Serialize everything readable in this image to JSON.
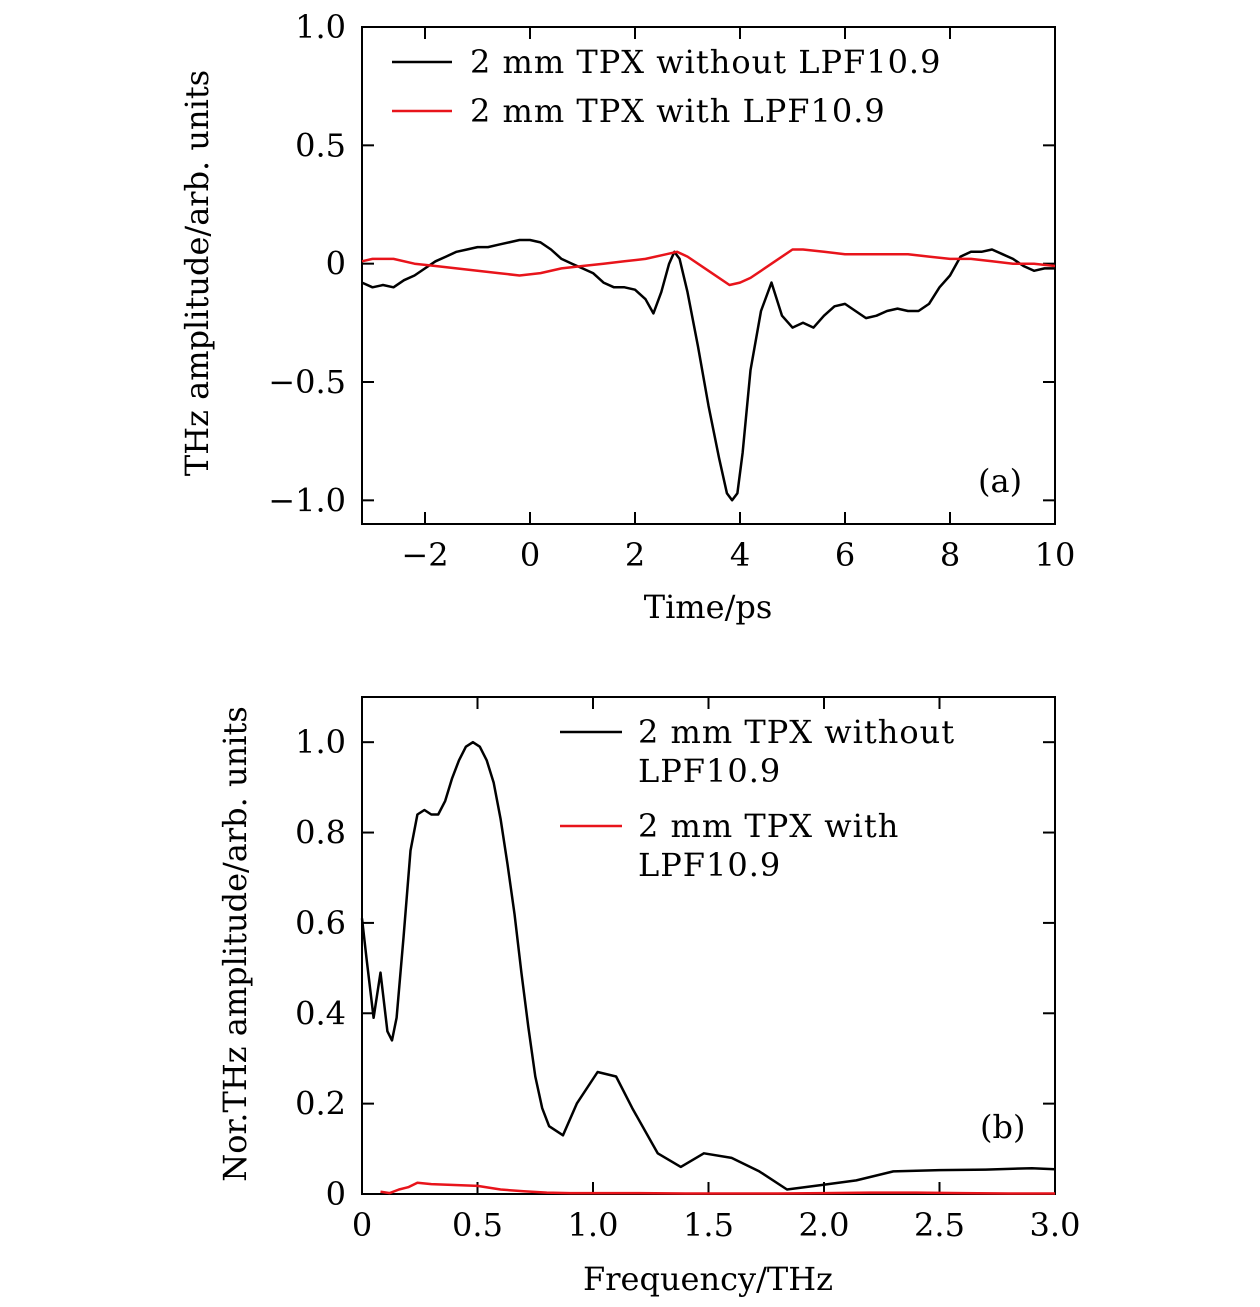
{
  "chart_data": [
    {
      "type": "line",
      "panel_label": "(a)",
      "xlabel": "Time/ps",
      "ylabel": "THz amplitude/arb. units",
      "xlim": [
        -3.2,
        10
      ],
      "ylim": [
        -1.1,
        1.0
      ],
      "xticks": [
        -2,
        0,
        2,
        4,
        6,
        8,
        10
      ],
      "xtick_labels": [
        "−2",
        "0",
        "2",
        "4",
        "6",
        "8",
        "10"
      ],
      "yticks": [
        -1.0,
        -0.5,
        0,
        0.5,
        1.0
      ],
      "ytick_labels": [
        "−1.0",
        "−0.5",
        "0",
        "0.5",
        "1.0"
      ],
      "legend_position": "top-right",
      "series": [
        {
          "name": "2 mm TPX without LPF10.9",
          "color": "#000000",
          "x": [
            -3.2,
            -3.0,
            -2.8,
            -2.6,
            -2.4,
            -2.2,
            -2.0,
            -1.8,
            -1.6,
            -1.4,
            -1.2,
            -1.0,
            -0.8,
            -0.6,
            -0.4,
            -0.2,
            0.0,
            0.2,
            0.4,
            0.6,
            0.8,
            1.0,
            1.2,
            1.4,
            1.6,
            1.8,
            2.0,
            2.2,
            2.35,
            2.5,
            2.65,
            2.75,
            2.85,
            3.0,
            3.2,
            3.4,
            3.6,
            3.75,
            3.85,
            3.95,
            4.05,
            4.2,
            4.4,
            4.6,
            4.8,
            5.0,
            5.2,
            5.4,
            5.6,
            5.8,
            6.0,
            6.2,
            6.4,
            6.6,
            6.8,
            7.0,
            7.2,
            7.4,
            7.6,
            7.8,
            8.0,
            8.2,
            8.4,
            8.6,
            8.8,
            9.0,
            9.2,
            9.4,
            9.6,
            9.8,
            10.0
          ],
          "y": [
            -0.08,
            -0.1,
            -0.09,
            -0.1,
            -0.07,
            -0.05,
            -0.02,
            0.01,
            0.03,
            0.05,
            0.06,
            0.07,
            0.07,
            0.08,
            0.09,
            0.1,
            0.1,
            0.09,
            0.06,
            0.02,
            0.0,
            -0.02,
            -0.04,
            -0.08,
            -0.1,
            -0.1,
            -0.11,
            -0.15,
            -0.21,
            -0.12,
            0.0,
            0.05,
            0.02,
            -0.12,
            -0.35,
            -0.6,
            -0.82,
            -0.97,
            -1.0,
            -0.97,
            -0.8,
            -0.45,
            -0.2,
            -0.08,
            -0.22,
            -0.27,
            -0.25,
            -0.27,
            -0.22,
            -0.18,
            -0.17,
            -0.2,
            -0.23,
            -0.22,
            -0.2,
            -0.19,
            -0.2,
            -0.2,
            -0.17,
            -0.1,
            -0.05,
            0.03,
            0.05,
            0.05,
            0.06,
            0.04,
            0.02,
            -0.01,
            -0.03,
            -0.02,
            -0.02
          ]
        },
        {
          "name": "2 mm TPX with LPF10.9",
          "color": "#e8141b",
          "x": [
            -3.2,
            -3.0,
            -2.6,
            -2.2,
            -1.8,
            -1.4,
            -1.0,
            -0.6,
            -0.2,
            0.2,
            0.6,
            1.0,
            1.4,
            1.8,
            2.2,
            2.6,
            2.8,
            3.0,
            3.4,
            3.8,
            4.0,
            4.2,
            4.6,
            5.0,
            5.2,
            5.6,
            6.0,
            6.4,
            6.8,
            7.2,
            7.6,
            8.0,
            8.4,
            8.8,
            9.2,
            9.6,
            10.0
          ],
          "y": [
            0.01,
            0.02,
            0.02,
            0.0,
            -0.01,
            -0.02,
            -0.03,
            -0.04,
            -0.05,
            -0.04,
            -0.02,
            -0.01,
            0.0,
            0.01,
            0.02,
            0.04,
            0.05,
            0.03,
            -0.03,
            -0.09,
            -0.08,
            -0.06,
            0.0,
            0.06,
            0.06,
            0.05,
            0.04,
            0.04,
            0.04,
            0.04,
            0.03,
            0.02,
            0.02,
            0.01,
            0.0,
            0.0,
            -0.01
          ]
        }
      ]
    },
    {
      "type": "line",
      "panel_label": "(b)",
      "xlabel": "Frequency/THz",
      "ylabel": "Nor.THz amplitude/arb. units",
      "xlim": [
        0,
        3.0
      ],
      "ylim": [
        0,
        1.1
      ],
      "xticks": [
        0,
        0.5,
        1.0,
        1.5,
        2.0,
        2.5,
        3.0
      ],
      "xtick_labels": [
        "0",
        "0.5",
        "1.0",
        "1.5",
        "2.0",
        "2.5",
        "3.0"
      ],
      "yticks": [
        0,
        0.2,
        0.4,
        0.6,
        0.8,
        1.0
      ],
      "ytick_labels": [
        "0",
        "0.2",
        "0.4",
        "0.6",
        "0.8",
        "1.0"
      ],
      "legend_position": "top-right",
      "series": [
        {
          "name": "2 mm TPX without LPF10.9",
          "name_lines": [
            "2 mm TPX without",
            "LPF10.9"
          ],
          "color": "#000000",
          "x": [
            0.0,
            0.02,
            0.05,
            0.08,
            0.11,
            0.13,
            0.15,
            0.18,
            0.21,
            0.24,
            0.27,
            0.3,
            0.33,
            0.36,
            0.39,
            0.42,
            0.45,
            0.48,
            0.51,
            0.54,
            0.57,
            0.6,
            0.63,
            0.66,
            0.69,
            0.72,
            0.75,
            0.78,
            0.81,
            0.87,
            0.93,
            1.02,
            1.1,
            1.17,
            1.28,
            1.38,
            1.48,
            1.6,
            1.72,
            1.84,
            1.99,
            2.14,
            2.3,
            2.5,
            2.7,
            2.9,
            3.0
          ],
          "y": [
            0.61,
            0.52,
            0.39,
            0.49,
            0.36,
            0.34,
            0.39,
            0.57,
            0.76,
            0.84,
            0.85,
            0.84,
            0.84,
            0.87,
            0.92,
            0.96,
            0.99,
            1.0,
            0.99,
            0.96,
            0.91,
            0.83,
            0.73,
            0.62,
            0.49,
            0.37,
            0.26,
            0.19,
            0.15,
            0.13,
            0.2,
            0.27,
            0.26,
            0.19,
            0.09,
            0.06,
            0.09,
            0.08,
            0.05,
            0.01,
            0.02,
            0.03,
            0.05,
            0.053,
            0.054,
            0.057,
            0.055
          ]
        },
        {
          "name": "2 mm TPX with LPF10.9",
          "name_lines": [
            "2 mm TPX with",
            "LPF10.9"
          ],
          "color": "#e8141b",
          "x": [
            0.08,
            0.12,
            0.16,
            0.2,
            0.24,
            0.3,
            0.4,
            0.5,
            0.6,
            0.7,
            0.8,
            0.9,
            1.0,
            1.2,
            1.4,
            1.6,
            1.8,
            2.0,
            2.2,
            2.4,
            2.6,
            2.8,
            3.0
          ],
          "y": [
            0.005,
            0.002,
            0.01,
            0.015,
            0.025,
            0.022,
            0.02,
            0.018,
            0.01,
            0.006,
            0.003,
            0.002,
            0.002,
            0.002,
            0.001,
            0.001,
            0.001,
            0.002,
            0.003,
            0.003,
            0.002,
            0.001,
            0.001
          ]
        }
      ]
    }
  ]
}
